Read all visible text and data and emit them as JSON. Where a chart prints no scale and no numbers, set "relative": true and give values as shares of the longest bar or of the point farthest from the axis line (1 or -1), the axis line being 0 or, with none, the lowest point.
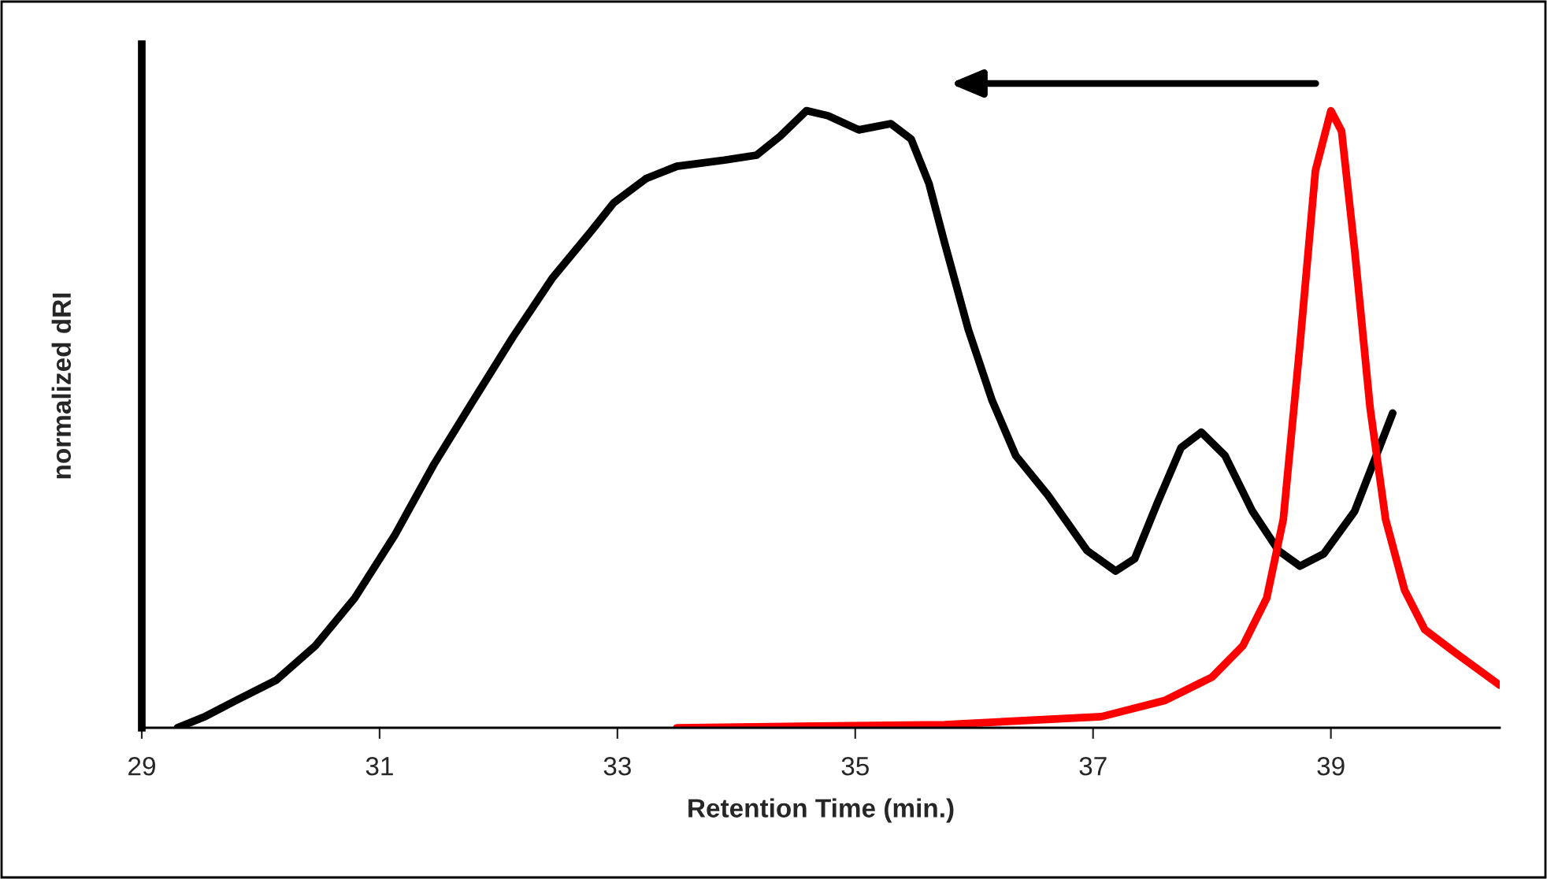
{
  "chart_data": {
    "type": "line",
    "relative": true,
    "xlabel": "Retention Time (min.)",
    "ylabel": "normalized dRI",
    "xlim": [
      29,
      40.42
    ],
    "xticks": [
      29,
      31,
      33,
      35,
      37,
      39
    ],
    "grid": false,
    "legend": false,
    "marker": "none",
    "line_style": "solid",
    "series": [
      {
        "color": "#000000",
        "x": [
          29.3,
          29.53,
          29.79,
          30.13,
          30.46,
          30.79,
          31.13,
          31.46,
          31.79,
          32.12,
          32.45,
          32.78,
          32.97,
          33.24,
          33.5,
          33.9,
          34.17,
          34.37,
          34.59,
          34.77,
          35.03,
          35.3,
          35.47,
          35.62,
          35.75,
          35.95,
          36.15,
          36.35,
          36.62,
          36.95,
          37.19,
          37.35,
          37.54,
          37.74,
          37.91,
          38.11,
          38.34,
          38.56,
          38.74,
          38.94,
          39.2,
          39.52
        ],
        "values": [
          0,
          0.018,
          0.044,
          0.077,
          0.133,
          0.21,
          0.313,
          0.428,
          0.531,
          0.633,
          0.728,
          0.805,
          0.851,
          0.89,
          0.91,
          0.92,
          0.928,
          0.959,
          1.0,
          0.992,
          0.969,
          0.979,
          0.954,
          0.882,
          0.787,
          0.646,
          0.531,
          0.441,
          0.377,
          0.287,
          0.254,
          0.274,
          0.364,
          0.454,
          0.479,
          0.441,
          0.351,
          0.287,
          0.262,
          0.282,
          0.351,
          0.51
        ]
      },
      {
        "color": "#ff0000",
        "x": [
          33.5,
          35.75,
          37.07,
          37.6,
          38.0,
          38.26,
          38.46,
          38.6,
          38.74,
          38.87,
          39.0,
          39.09,
          39.2,
          39.33,
          39.46,
          39.62,
          39.79,
          40.05,
          40.42
        ],
        "values": [
          0,
          0.005,
          0.018,
          0.044,
          0.082,
          0.133,
          0.21,
          0.338,
          0.621,
          0.903,
          1.0,
          0.967,
          0.774,
          0.518,
          0.338,
          0.223,
          0.159,
          0.121,
          0.069
        ]
      }
    ]
  }
}
